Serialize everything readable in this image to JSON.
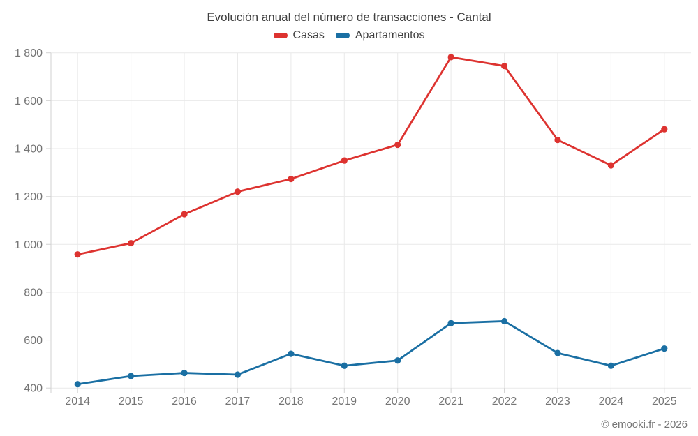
{
  "header": {
    "title": "Evolución anual del número de transacciones - Cantal"
  },
  "legend": {
    "items": [
      {
        "label": "Casas",
        "color": "#dd3330"
      },
      {
        "label": "Apartamentos",
        "color": "#1a6fa3"
      }
    ]
  },
  "footer": {
    "credit": "© emooki.fr - 2026"
  },
  "chart_data": {
    "type": "line",
    "title": "Evolución anual del número de transacciones - Cantal",
    "categories": [
      "2014",
      "2015",
      "2016",
      "2017",
      "2018",
      "2019",
      "2020",
      "2021",
      "2022",
      "2023",
      "2024",
      "2025"
    ],
    "series": [
      {
        "name": "Casas",
        "color": "#dd3330",
        "values": [
          958,
          1005,
          1126,
          1220,
          1273,
          1350,
          1416,
          1782,
          1745,
          1436,
          1330,
          1481
        ]
      },
      {
        "name": "Apartamentos",
        "color": "#1a6fa3",
        "values": [
          416,
          450,
          463,
          456,
          543,
          493,
          515,
          671,
          679,
          546,
          493,
          565
        ]
      }
    ],
    "xlabel": "",
    "ylabel": "",
    "ylim": [
      400,
      1800
    ],
    "yticks": [
      400,
      600,
      800,
      1000,
      1200,
      1400,
      1600,
      1800
    ],
    "ytick_labels": [
      "400",
      "600",
      "800",
      "1 000",
      "1 200",
      "1 400",
      "1 600",
      "1 800"
    ],
    "grid": true,
    "legend_position": "top",
    "colors": {
      "grid": "#e9e9e9",
      "axis": "#d2d2d2",
      "tick_text": "#757575",
      "title_text": "#3f3f3f"
    }
  }
}
